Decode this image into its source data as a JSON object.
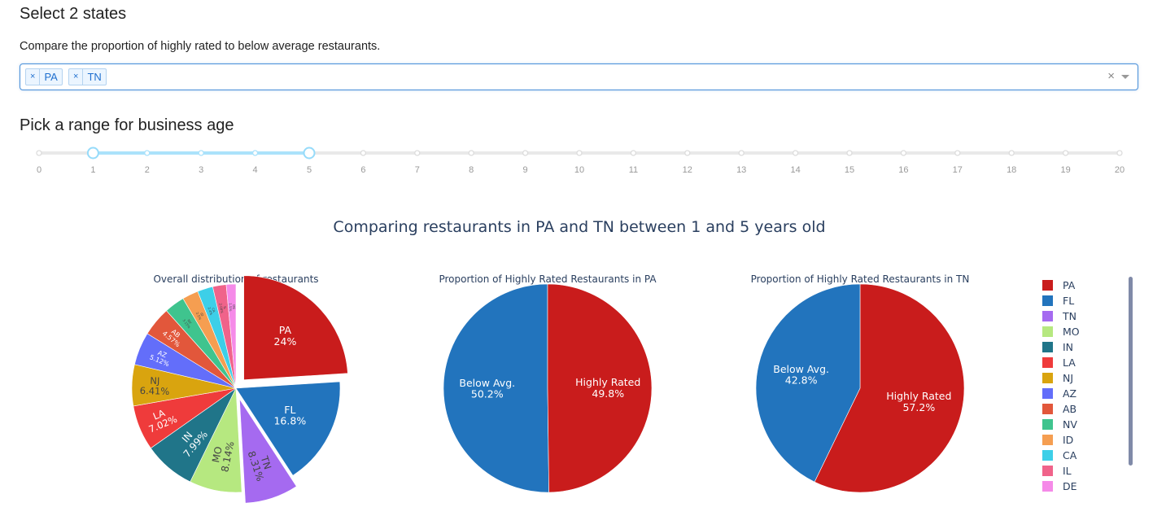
{
  "header": {
    "title": "Select 2 states",
    "description": "Compare the proportion of highly rated to below average restaurants."
  },
  "dropdown": {
    "selected": [
      {
        "label": "PA",
        "remove": "×"
      },
      {
        "label": "TN",
        "remove": "×"
      }
    ],
    "clear_label": "×"
  },
  "range_section": {
    "title": "Pick a range for business age"
  },
  "slider": {
    "min": 0,
    "max": 20,
    "value": [
      1,
      5
    ],
    "ticks": [
      "0",
      "1",
      "2",
      "3",
      "4",
      "5",
      "6",
      "7",
      "8",
      "9",
      "10",
      "11",
      "12",
      "13",
      "14",
      "15",
      "16",
      "17",
      "18",
      "19",
      "20"
    ],
    "track_color": "#e9e9e9",
    "active_color": "#abe2fb"
  },
  "figure": {
    "title": "Comparing restaurants in PA and TN between 1 and 5 years old"
  },
  "chart_data": [
    {
      "type": "pie",
      "title": "Overall distribution of restaurants",
      "labels": [
        "PA",
        "FL",
        "TN",
        "MO",
        "IN",
        "LA",
        "NJ",
        "AZ",
        "AB",
        "NV",
        "ID",
        "CA",
        "IL",
        "DE"
      ],
      "values": [
        24.0,
        16.8,
        8.31,
        8.14,
        7.99,
        7.02,
        6.41,
        5.12,
        4.57,
        3.15,
        2.5,
        2.4,
        2.09,
        1.5
      ],
      "text": [
        "PA\n24%",
        "FL\n16.8%",
        "TN\n8.31%",
        "MO\n8.14%",
        "IN\n7.99%",
        "LA\n7.02%",
        "NJ\n6.41%",
        "AZ\n5.12%",
        "AB\n4.57%",
        "NV\n3.15%",
        "ID\n2.5%",
        "CA\n2.4%",
        "IL\n2.09%",
        "DE\n1.5%"
      ],
      "colors": [
        "#c91c1c",
        "#2274bd",
        "#a56af0",
        "#b6e880",
        "#207589",
        "#ef3b3b",
        "#d9a40f",
        "#636efa",
        "#e2573b",
        "#3fc48e",
        "#f59e51",
        "#3dcfe8",
        "#f0638a",
        "#f58ae8"
      ],
      "pulled": [
        "PA",
        "TN"
      ],
      "legend_position": "right"
    },
    {
      "type": "pie",
      "title": "Proportion of Highly Rated Restaurants in PA",
      "labels": [
        "Below Avg.",
        "Highly Rated"
      ],
      "values": [
        50.2,
        49.8
      ],
      "text": [
        "Below Avg.\n50.2%",
        "Highly Rated\n49.8%"
      ],
      "colors": [
        "#2274bd",
        "#c91c1c"
      ]
    },
    {
      "type": "pie",
      "title": "Proportion of Highly Rated Restaurants in TN",
      "labels": [
        "Highly Rated",
        "Below Avg."
      ],
      "values": [
        57.2,
        42.8
      ],
      "text": [
        "Highly Rated\n57.2%",
        "Below Avg.\n42.8%"
      ],
      "colors": [
        "#c91c1c",
        "#2274bd"
      ]
    }
  ],
  "legend": {
    "items": [
      {
        "label": "PA",
        "color": "#c91c1c"
      },
      {
        "label": "FL",
        "color": "#2274bd"
      },
      {
        "label": "TN",
        "color": "#a56af0"
      },
      {
        "label": "MO",
        "color": "#b6e880"
      },
      {
        "label": "IN",
        "color": "#207589"
      },
      {
        "label": "LA",
        "color": "#ef3b3b"
      },
      {
        "label": "NJ",
        "color": "#d9a40f"
      },
      {
        "label": "AZ",
        "color": "#636efa"
      },
      {
        "label": "AB",
        "color": "#e2573b"
      },
      {
        "label": "NV",
        "color": "#3fc48e"
      },
      {
        "label": "ID",
        "color": "#f59e51"
      },
      {
        "label": "CA",
        "color": "#3dcfe8"
      },
      {
        "label": "IL",
        "color": "#f0638a"
      },
      {
        "label": "DE",
        "color": "#f58ae8"
      }
    ]
  }
}
